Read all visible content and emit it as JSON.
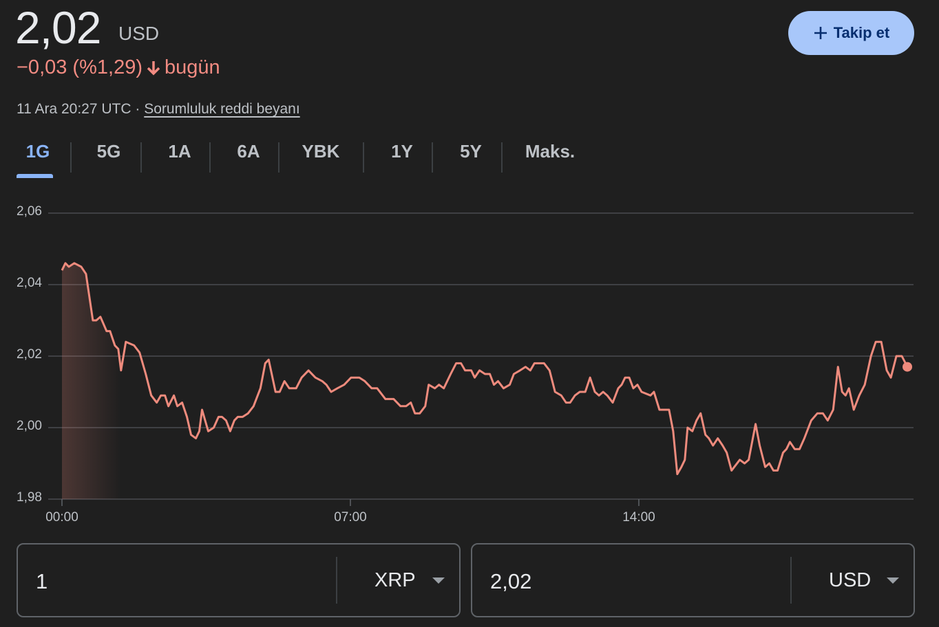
{
  "header": {
    "price": "2,02",
    "currency": "USD",
    "change": "−0,03 (%1,29)",
    "period": "bugün",
    "timestamp": "11 Ara 20:27 UTC",
    "separator": "·",
    "disclaimer": "Sorumluluk reddi beyanı"
  },
  "follow_button": "Takip et",
  "tabs": [
    "1G",
    "5G",
    "1A",
    "6A",
    "YBK",
    "1Y",
    "5Y",
    "Maks."
  ],
  "active_tab": 0,
  "converter": {
    "from_amount": "1",
    "from_currency": "XRP",
    "to_amount": "2,02",
    "to_currency": "USD"
  },
  "chart_data": {
    "type": "line",
    "color": "#ee8b7d",
    "grid": true,
    "xlim": [
      0,
      1240
    ],
    "ylim": [
      1.98,
      2.06
    ],
    "xticks": [
      {
        "value": 0,
        "label": "00:00"
      },
      {
        "value": 420,
        "label": "07:00"
      },
      {
        "value": 840,
        "label": "14:00"
      }
    ],
    "yticks": [
      {
        "value": 1.98,
        "label": "1,98"
      },
      {
        "value": 2.0,
        "label": "2,00"
      },
      {
        "value": 2.02,
        "label": "2,02"
      },
      {
        "value": 2.04,
        "label": "2,04"
      },
      {
        "value": 2.06,
        "label": "2,06"
      }
    ],
    "x": [
      0,
      5,
      10,
      18,
      28,
      35,
      45,
      50,
      56,
      65,
      70,
      77,
      82,
      86,
      93,
      105,
      113,
      122,
      130,
      138,
      144,
      150,
      155,
      163,
      168,
      175,
      182,
      188,
      195,
      200,
      204,
      213,
      221,
      228,
      233,
      239,
      245,
      251,
      256,
      263,
      271,
      279,
      289,
      296,
      301,
      311,
      317,
      324,
      331,
      341,
      349,
      359,
      369,
      379,
      385,
      392,
      401,
      411,
      421,
      433,
      441,
      451,
      459,
      471,
      483,
      493,
      501,
      508,
      514,
      521,
      529,
      534,
      543,
      549,
      556,
      566,
      574,
      581,
      587,
      596,
      601,
      608,
      616,
      623,
      629,
      635,
      643,
      652,
      658,
      667,
      675,
      682,
      688,
      702,
      710,
      718,
      727,
      734,
      740,
      747,
      754,
      762,
      769,
      776,
      782,
      788,
      794,
      802,
      810,
      815,
      820,
      826,
      832,
      838,
      844,
      857,
      862,
      870,
      878,
      884,
      890,
      896,
      902,
      907,
      911,
      918,
      924,
      930,
      937,
      942,
      948,
      955,
      962,
      968,
      975,
      987,
      994,
      1000,
      1004,
      1010,
      1016,
      1024,
      1030,
      1036,
      1042,
      1050,
      1055,
      1060,
      1067,
      1074,
      1081,
      1091,
      1100,
      1108,
      1115,
      1123,
      1130,
      1136,
      1141,
      1146,
      1153,
      1161,
      1169,
      1178,
      1185,
      1193,
      1201,
      1207,
      1215,
      1223,
      1231
    ],
    "values": [
      2.044,
      2.046,
      2.045,
      2.046,
      2.045,
      2.043,
      2.03,
      2.03,
      2.031,
      2.027,
      2.027,
      2.023,
      2.022,
      2.016,
      2.024,
      2.023,
      2.021,
      2.015,
      2.009,
      2.007,
      2.009,
      2.009,
      2.006,
      2.009,
      2.006,
      2.007,
      2.003,
      1.998,
      1.997,
      1.999,
      2.005,
      1.999,
      2.0,
      2.003,
      2.003,
      2.002,
      1.999,
      2.002,
      2.003,
      2.003,
      2.004,
      2.006,
      2.011,
      2.018,
      2.019,
      2.01,
      2.01,
      2.013,
      2.011,
      2.011,
      2.014,
      2.016,
      2.014,
      2.013,
      2.012,
      2.01,
      2.011,
      2.012,
      2.014,
      2.014,
      2.013,
      2.011,
      2.011,
      2.008,
      2.008,
      2.006,
      2.006,
      2.007,
      2.004,
      2.004,
      2.006,
      2.012,
      2.011,
      2.012,
      2.011,
      2.015,
      2.018,
      2.018,
      2.016,
      2.016,
      2.014,
      2.016,
      2.015,
      2.015,
      2.012,
      2.013,
      2.011,
      2.012,
      2.015,
      2.016,
      2.017,
      2.016,
      2.018,
      2.018,
      2.016,
      2.01,
      2.009,
      2.007,
      2.007,
      2.009,
      2.01,
      2.01,
      2.014,
      2.01,
      2.009,
      2.01,
      2.009,
      2.007,
      2.011,
      2.012,
      2.014,
      2.014,
      2.011,
      2.012,
      2.01,
      2.009,
      2.01,
      2.005,
      2.005,
      2.005,
      1.999,
      1.987,
      1.989,
      1.991,
      2.0,
      1.999,
      2.002,
      2.004,
      1.998,
      1.997,
      1.995,
      1.997,
      1.995,
      1.993,
      1.988,
      1.991,
      1.99,
      1.991,
      1.995,
      2.001,
      1.995,
      1.989,
      1.99,
      1.988,
      1.988,
      1.993,
      1.994,
      1.996,
      1.994,
      1.994,
      1.997,
      2.002,
      2.004,
      2.004,
      2.002,
      2.005,
      2.017,
      2.01,
      2.009,
      2.011,
      2.005,
      2.009,
      2.012,
      2.02,
      2.024,
      2.024,
      2.016,
      2.014,
      2.02,
      2.02,
      2.017
    ]
  }
}
